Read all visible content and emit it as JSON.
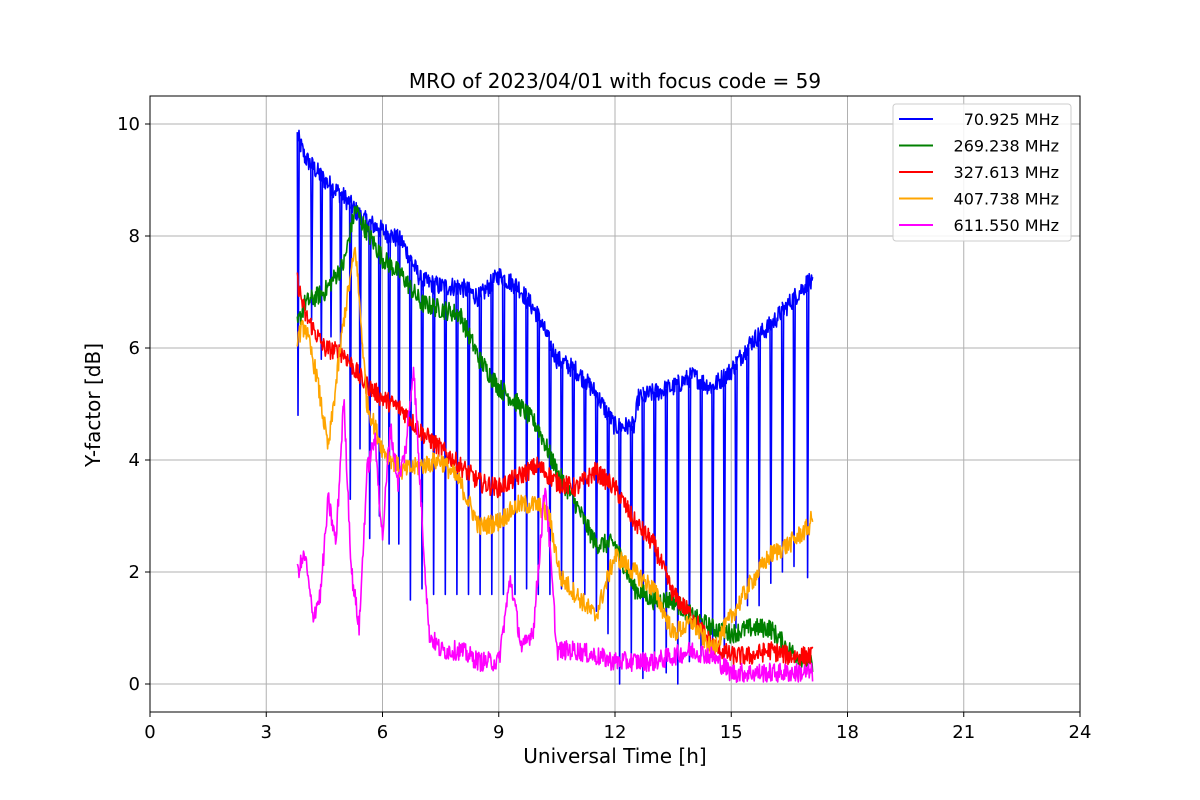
{
  "chart_data": {
    "type": "line",
    "title": "MRO of 2023/04/01 with focus code = 59",
    "xlabel": "Universal Time [h]",
    "ylabel": "Y-factor [dB]",
    "xlim": [
      0,
      24
    ],
    "ylim": [
      -0.5,
      10.5
    ],
    "xticks": [
      0,
      3,
      6,
      9,
      12,
      15,
      18,
      21,
      24
    ],
    "xtick_labels": [
      "0",
      "3",
      "6",
      "9",
      "12",
      "15",
      "18",
      "21",
      "24"
    ],
    "yticks": [
      0,
      2,
      4,
      6,
      8,
      10
    ],
    "ytick_labels": [
      "0",
      "2",
      "4",
      "6",
      "8",
      "10"
    ],
    "grid": true,
    "legend_position": "top-right",
    "series": [
      {
        "name": "70.925 MHz",
        "color": "#0000ff",
        "baseline": [
          [
            3.8,
            9.8
          ],
          [
            4.0,
            9.4
          ],
          [
            4.5,
            9.0
          ],
          [
            5.0,
            8.7
          ],
          [
            5.5,
            8.3
          ],
          [
            6.0,
            8.1
          ],
          [
            6.5,
            7.9
          ],
          [
            7.0,
            7.2
          ],
          [
            7.5,
            7.1
          ],
          [
            8.0,
            7.1
          ],
          [
            8.5,
            6.9
          ],
          [
            9.0,
            7.3
          ],
          [
            9.5,
            7.1
          ],
          [
            10.0,
            6.6
          ],
          [
            10.5,
            5.8
          ],
          [
            11.0,
            5.6
          ],
          [
            11.5,
            5.2
          ],
          [
            12.0,
            4.6
          ],
          [
            12.5,
            4.6
          ],
          [
            12.6,
            5.1
          ],
          [
            13.0,
            5.2
          ],
          [
            13.5,
            5.3
          ],
          [
            14.0,
            5.5
          ],
          [
            14.5,
            5.3
          ],
          [
            15.0,
            5.6
          ],
          [
            15.5,
            6.1
          ],
          [
            16.0,
            6.4
          ],
          [
            16.5,
            6.8
          ],
          [
            17.0,
            7.2
          ],
          [
            17.1,
            7.1
          ]
        ],
        "dips": [
          [
            3.8,
            4.8
          ],
          [
            4.15,
            6.5
          ],
          [
            4.4,
            5.8
          ],
          [
            4.65,
            6.2
          ],
          [
            4.9,
            6.0
          ],
          [
            5.15,
            3.3
          ],
          [
            5.4,
            4.2
          ],
          [
            5.65,
            2.6
          ],
          [
            5.9,
            3.0
          ],
          [
            6.15,
            2.5
          ],
          [
            6.4,
            2.5
          ],
          [
            6.7,
            1.5
          ],
          [
            7.0,
            1.7
          ],
          [
            7.3,
            1.6
          ],
          [
            7.6,
            1.6
          ],
          [
            7.9,
            1.6
          ],
          [
            8.2,
            1.6
          ],
          [
            8.5,
            1.6
          ],
          [
            8.8,
            1.6
          ],
          [
            9.1,
            1.6
          ],
          [
            9.4,
            1.6
          ],
          [
            9.7,
            1.7
          ],
          [
            10.0,
            1.6
          ],
          [
            10.3,
            1.6
          ],
          [
            10.6,
            1.7
          ],
          [
            10.9,
            1.7
          ],
          [
            11.2,
            1.6
          ],
          [
            11.5,
            1.3
          ],
          [
            11.8,
            0.9
          ],
          [
            12.1,
            0.0
          ],
          [
            12.4,
            0.5
          ],
          [
            12.7,
            0.1
          ],
          [
            13.0,
            0.3
          ],
          [
            13.3,
            0.2
          ],
          [
            13.6,
            0.0
          ],
          [
            13.9,
            0.4
          ],
          [
            14.2,
            0.5
          ],
          [
            14.5,
            0.8
          ],
          [
            14.8,
            0.5
          ],
          [
            15.1,
            1.0
          ],
          [
            15.4,
            1.4
          ],
          [
            15.7,
            1.4
          ],
          [
            16.0,
            1.8
          ],
          [
            16.3,
            2.0
          ],
          [
            16.6,
            2.1
          ],
          [
            16.95,
            1.9
          ]
        ]
      },
      {
        "name": "269.238 MHz",
        "color": "#008000",
        "baseline": [
          [
            3.8,
            6.4
          ],
          [
            4.0,
            6.8
          ],
          [
            4.5,
            7.0
          ],
          [
            5.0,
            7.5
          ],
          [
            5.3,
            8.5
          ],
          [
            5.5,
            8.2
          ],
          [
            6.0,
            7.6
          ],
          [
            6.5,
            7.3
          ],
          [
            7.0,
            6.8
          ],
          [
            7.5,
            6.7
          ],
          [
            8.0,
            6.6
          ],
          [
            8.5,
            5.8
          ],
          [
            9.0,
            5.3
          ],
          [
            9.5,
            5.0
          ],
          [
            10.0,
            4.6
          ],
          [
            10.5,
            3.8
          ],
          [
            11.0,
            3.2
          ],
          [
            11.5,
            2.5
          ],
          [
            12.0,
            2.5
          ],
          [
            12.5,
            1.7
          ],
          [
            13.0,
            1.5
          ],
          [
            13.5,
            1.5
          ],
          [
            14.0,
            1.2
          ],
          [
            14.5,
            1.0
          ],
          [
            15.0,
            0.9
          ],
          [
            15.5,
            1.0
          ],
          [
            16.0,
            1.0
          ],
          [
            16.5,
            0.6
          ],
          [
            17.0,
            0.4
          ],
          [
            17.1,
            0.3
          ]
        ]
      },
      {
        "name": "327.613 MHz",
        "color": "#ff0000",
        "baseline": [
          [
            3.8,
            7.2
          ],
          [
            4.0,
            6.6
          ],
          [
            4.5,
            6.0
          ],
          [
            5.0,
            5.9
          ],
          [
            5.5,
            5.4
          ],
          [
            6.0,
            5.1
          ],
          [
            6.5,
            4.9
          ],
          [
            7.0,
            4.5
          ],
          [
            7.5,
            4.2
          ],
          [
            8.0,
            3.9
          ],
          [
            8.5,
            3.6
          ],
          [
            9.0,
            3.5
          ],
          [
            9.5,
            3.7
          ],
          [
            10.0,
            3.9
          ],
          [
            10.5,
            3.6
          ],
          [
            11.0,
            3.5
          ],
          [
            11.5,
            3.8
          ],
          [
            12.0,
            3.5
          ],
          [
            12.5,
            2.9
          ],
          [
            13.0,
            2.5
          ],
          [
            13.5,
            1.6
          ],
          [
            14.0,
            1.2
          ],
          [
            14.5,
            0.7
          ],
          [
            15.0,
            0.5
          ],
          [
            15.5,
            0.5
          ],
          [
            16.0,
            0.6
          ],
          [
            16.5,
            0.5
          ],
          [
            17.0,
            0.5
          ],
          [
            17.1,
            0.5
          ]
        ]
      },
      {
        "name": "407.738 MHz",
        "color": "#ffa500",
        "baseline": [
          [
            3.8,
            6.2
          ],
          [
            4.0,
            6.4
          ],
          [
            4.3,
            5.5
          ],
          [
            4.6,
            4.2
          ],
          [
            5.0,
            6.5
          ],
          [
            5.3,
            7.8
          ],
          [
            5.6,
            5.0
          ],
          [
            6.0,
            4.2
          ],
          [
            6.5,
            3.8
          ],
          [
            7.0,
            3.9
          ],
          [
            7.5,
            4.0
          ],
          [
            8.0,
            3.6
          ],
          [
            8.5,
            2.8
          ],
          [
            9.0,
            2.9
          ],
          [
            9.5,
            3.2
          ],
          [
            10.0,
            3.2
          ],
          [
            10.3,
            3.0
          ],
          [
            10.6,
            1.9
          ],
          [
            11.0,
            1.6
          ],
          [
            11.5,
            1.2
          ],
          [
            12.0,
            2.3
          ],
          [
            12.5,
            2.0
          ],
          [
            13.0,
            1.7
          ],
          [
            13.5,
            0.9
          ],
          [
            14.0,
            1.1
          ],
          [
            14.5,
            0.6
          ],
          [
            15.0,
            1.2
          ],
          [
            15.5,
            1.8
          ],
          [
            16.0,
            2.3
          ],
          [
            16.5,
            2.5
          ],
          [
            17.0,
            2.8
          ],
          [
            17.1,
            3.0
          ]
        ]
      },
      {
        "name": "611.550 MHz",
        "color": "#ff00ff",
        "baseline": [
          [
            3.8,
            2.0
          ],
          [
            4.0,
            2.3
          ],
          [
            4.2,
            1.2
          ],
          [
            4.4,
            1.6
          ],
          [
            4.6,
            3.3
          ],
          [
            4.8,
            2.5
          ],
          [
            5.0,
            5.1
          ],
          [
            5.2,
            2.0
          ],
          [
            5.4,
            1.0
          ],
          [
            5.6,
            3.8
          ],
          [
            5.8,
            4.4
          ],
          [
            6.0,
            2.6
          ],
          [
            6.2,
            4.6
          ],
          [
            6.4,
            3.6
          ],
          [
            6.6,
            4.2
          ],
          [
            6.8,
            5.7
          ],
          [
            7.0,
            3.2
          ],
          [
            7.2,
            0.9
          ],
          [
            7.5,
            0.6
          ],
          [
            8.0,
            0.6
          ],
          [
            8.5,
            0.4
          ],
          [
            9.0,
            0.4
          ],
          [
            9.3,
            1.9
          ],
          [
            9.6,
            0.6
          ],
          [
            9.9,
            1.0
          ],
          [
            10.2,
            3.6
          ],
          [
            10.5,
            0.6
          ],
          [
            11.0,
            0.6
          ],
          [
            11.5,
            0.5
          ],
          [
            12.0,
            0.4
          ],
          [
            12.5,
            0.4
          ],
          [
            13.0,
            0.4
          ],
          [
            13.5,
            0.5
          ],
          [
            14.0,
            0.6
          ],
          [
            14.5,
            0.5
          ],
          [
            15.0,
            0.2
          ],
          [
            15.5,
            0.2
          ],
          [
            16.0,
            0.2
          ],
          [
            16.5,
            0.2
          ],
          [
            17.0,
            0.2
          ],
          [
            17.1,
            0.2
          ]
        ]
      }
    ]
  }
}
